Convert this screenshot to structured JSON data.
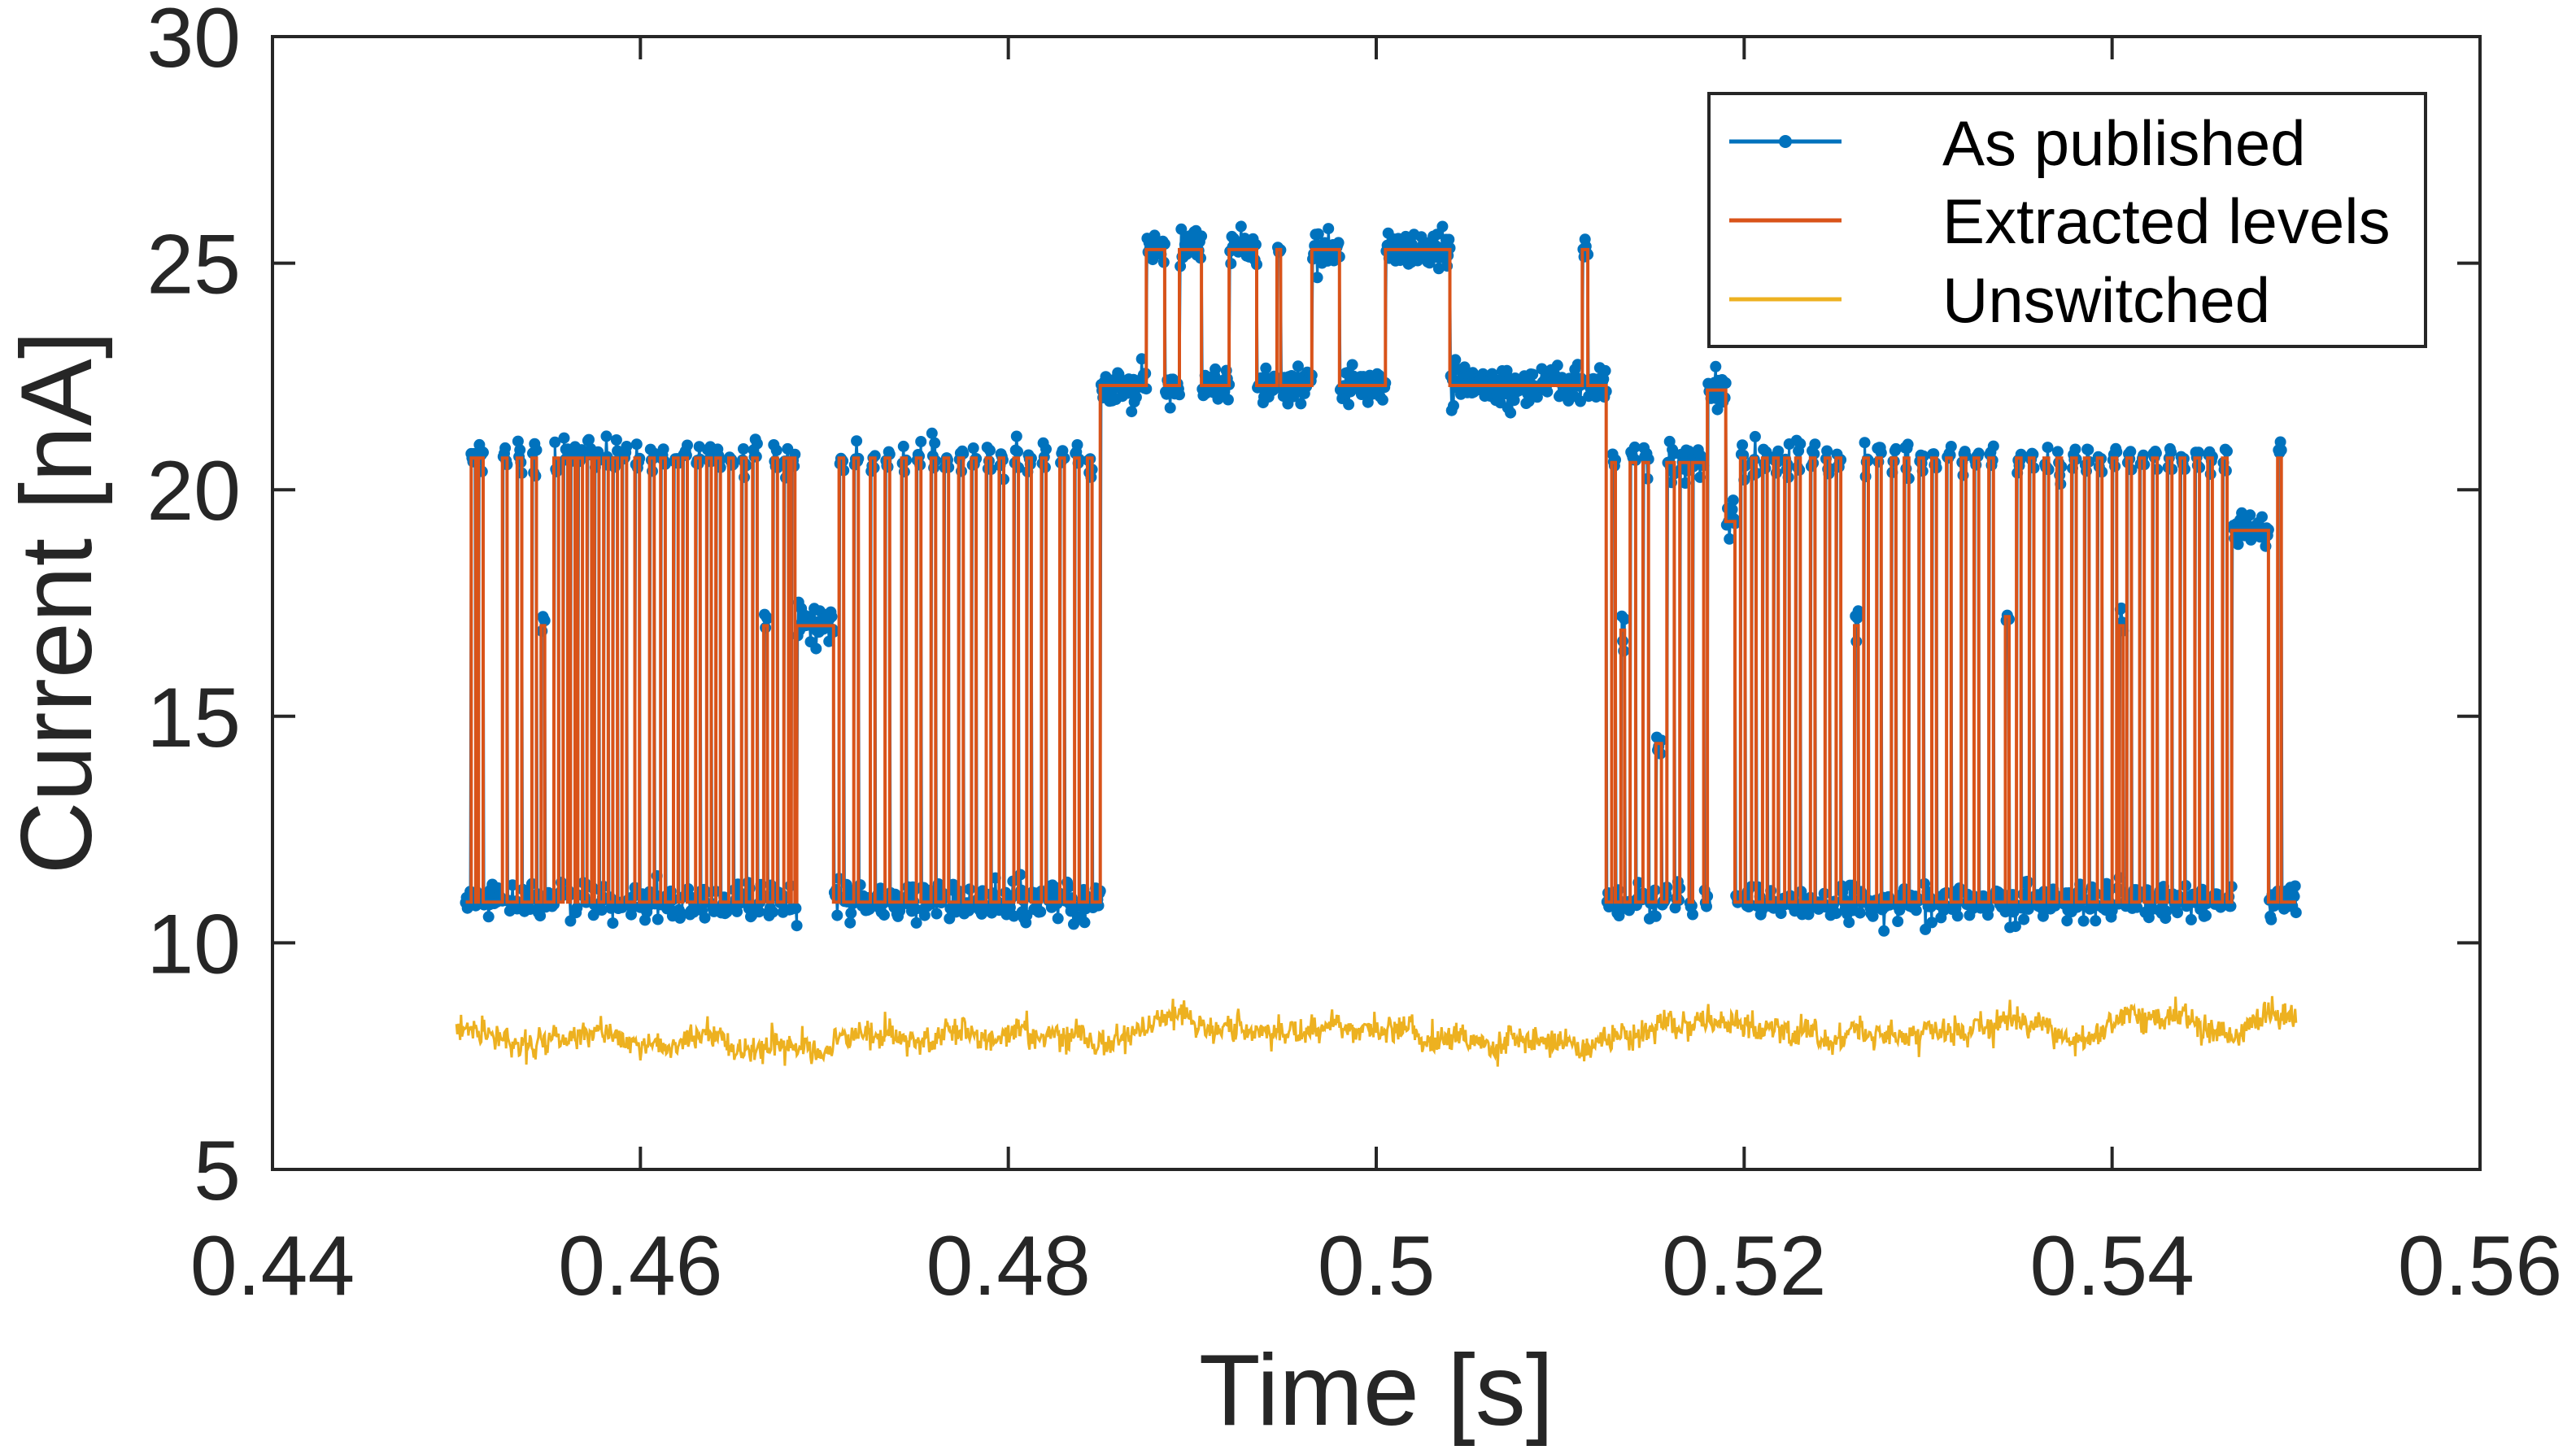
{
  "chart_data": {
    "type": "line",
    "title": "",
    "xlabel": "Time [s]",
    "ylabel": "Current [nA]",
    "xlim": [
      0.44,
      0.56
    ],
    "ylim": [
      5,
      30
    ],
    "xticks": [
      0.44,
      0.46,
      0.48,
      0.5,
      0.52,
      0.54,
      0.56
    ],
    "xtick_labels": [
      "0.44",
      "0.46",
      "0.48",
      "0.5",
      "0.52",
      "0.54",
      "0.56"
    ],
    "yticks": [
      5,
      10,
      15,
      20,
      25,
      30
    ],
    "ytick_labels": [
      "5",
      "10",
      "15",
      "20",
      "25",
      "30"
    ],
    "grid": false,
    "legend_position": "top-right",
    "legend": [
      "As published",
      "Extracted levels",
      "Unswitched"
    ],
    "colors": {
      "as_published": "#0072BD",
      "extracted": "#D95319",
      "unswitched": "#EDB120",
      "axis": "#262626"
    },
    "series": [
      {
        "name": "As published",
        "style": "line-with-dots",
        "noise_std": 0.2,
        "sample_step": 5e-05
      },
      {
        "name": "Extracted levels",
        "style": "step",
        "blocks": [
          {
            "t0": 0.4505,
            "t1": 0.4685,
            "base": 10.9,
            "events": [
              [
                0.4508,
                0.00025,
                20.7
              ],
              [
                0.4512,
                0.00025,
                20.7
              ],
              [
                0.4525,
                0.00025,
                20.7
              ],
              [
                0.4533,
                0.00025,
                20.7
              ],
              [
                0.4541,
                0.00025,
                20.7
              ],
              [
                0.4546,
                0.0002,
                17.0
              ],
              [
                0.4553,
                0.00025,
                20.7
              ],
              [
                0.4558,
                0.00025,
                20.7
              ],
              [
                0.4562,
                0.00025,
                20.7
              ],
              [
                0.4566,
                0.00025,
                20.7
              ],
              [
                0.4571,
                0.00025,
                20.7
              ],
              [
                0.4575,
                0.00025,
                20.7
              ],
              [
                0.458,
                0.00025,
                20.7
              ],
              [
                0.4585,
                0.00025,
                20.7
              ],
              [
                0.459,
                0.00025,
                20.7
              ],
              [
                0.4597,
                0.00025,
                20.7
              ],
              [
                0.4605,
                0.00025,
                20.7
              ],
              [
                0.4611,
                0.00025,
                20.7
              ],
              [
                0.4618,
                0.00025,
                20.7
              ],
              [
                0.4623,
                0.00025,
                20.7
              ],
              [
                0.463,
                0.00025,
                20.7
              ],
              [
                0.4636,
                0.00025,
                20.7
              ],
              [
                0.4641,
                0.00025,
                20.7
              ],
              [
                0.4648,
                0.00025,
                20.7
              ],
              [
                0.4655,
                0.00025,
                20.7
              ],
              [
                0.4661,
                0.00025,
                20.7
              ],
              [
                0.4667,
                0.0002,
                17.0
              ],
              [
                0.4672,
                0.00025,
                20.7
              ],
              [
                0.4678,
                0.00025,
                20.7
              ],
              [
                0.4682,
                0.0002,
                20.7
              ]
            ]
          },
          {
            "t0": 0.4685,
            "t1": 0.4705,
            "base": 17.0,
            "events": []
          },
          {
            "t0": 0.4705,
            "t1": 0.485,
            "base": 10.9,
            "events": [
              [
                0.4708,
                0.00025,
                20.7
              ],
              [
                0.4716,
                0.00025,
                20.7
              ],
              [
                0.4725,
                0.00025,
                20.7
              ],
              [
                0.4733,
                0.00025,
                20.7
              ],
              [
                0.4742,
                0.00025,
                20.7
              ],
              [
                0.475,
                0.00025,
                20.7
              ],
              [
                0.4758,
                0.00025,
                20.7
              ],
              [
                0.4765,
                0.00025,
                20.7
              ],
              [
                0.4773,
                0.00025,
                20.7
              ],
              [
                0.478,
                0.00025,
                20.7
              ],
              [
                0.4788,
                0.00025,
                20.7
              ],
              [
                0.4795,
                0.00025,
                20.7
              ],
              [
                0.4803,
                0.00025,
                20.7
              ],
              [
                0.481,
                0.00025,
                20.7
              ],
              [
                0.4818,
                0.00025,
                20.7
              ],
              [
                0.4828,
                0.00025,
                20.7
              ],
              [
                0.4836,
                0.00025,
                20.7
              ],
              [
                0.4843,
                0.00025,
                20.7
              ]
            ]
          },
          {
            "t0": 0.485,
            "t1": 0.5125,
            "base": 22.3,
            "events": [
              [
                0.4875,
                0.001,
                25.3
              ],
              [
                0.4893,
                0.0012,
                25.3
              ],
              [
                0.492,
                0.0015,
                25.3
              ],
              [
                0.4946,
                0.0002,
                25.3
              ],
              [
                0.4965,
                0.0015,
                25.3
              ],
              [
                0.5005,
                0.0035,
                25.3
              ],
              [
                0.5112,
                0.0003,
                25.3
              ]
            ]
          },
          {
            "t0": 0.5125,
            "t1": 0.518,
            "base": 10.9,
            "events": [
              [
                0.5128,
                0.0002,
                20.6
              ],
              [
                0.5133,
                0.0002,
                16.9
              ],
              [
                0.5138,
                0.0003,
                20.6
              ],
              [
                0.5145,
                0.0003,
                20.6
              ],
              [
                0.5152,
                0.0003,
                14.4
              ],
              [
                0.5158,
                0.0004,
                20.6
              ],
              [
                0.5165,
                0.0005,
                20.6
              ],
              [
                0.5172,
                0.0006,
                20.6
              ]
            ]
          },
          {
            "t0": 0.518,
            "t1": 0.519,
            "base": 22.2,
            "events": []
          },
          {
            "t0": 0.519,
            "t1": 0.5195,
            "base": 19.3,
            "events": []
          },
          {
            "t0": 0.5195,
            "t1": 0.5465,
            "base": 10.9,
            "events": [
              [
                0.5198,
                0.00025,
                20.7
              ],
              [
                0.5204,
                0.00025,
                20.7
              ],
              [
                0.521,
                0.00025,
                20.7
              ],
              [
                0.5216,
                0.00025,
                20.7
              ],
              [
                0.5222,
                0.00025,
                20.7
              ],
              [
                0.5228,
                0.00025,
                20.7
              ],
              [
                0.5236,
                0.00025,
                20.7
              ],
              [
                0.5244,
                0.00025,
                20.7
              ],
              [
                0.525,
                0.00025,
                20.7
              ],
              [
                0.526,
                0.0002,
                17.0
              ],
              [
                0.5265,
                0.00025,
                20.7
              ],
              [
                0.5272,
                0.00025,
                20.7
              ],
              [
                0.528,
                0.00025,
                20.7
              ],
              [
                0.5287,
                0.00025,
                20.7
              ],
              [
                0.5295,
                0.00025,
                20.7
              ],
              [
                0.5302,
                0.00025,
                20.7
              ],
              [
                0.531,
                0.00025,
                20.7
              ],
              [
                0.5318,
                0.00025,
                20.7
              ],
              [
                0.5325,
                0.00025,
                20.7
              ],
              [
                0.5333,
                0.00025,
                20.7
              ],
              [
                0.5342,
                0.0002,
                17.2
              ],
              [
                0.5348,
                0.00025,
                20.7
              ],
              [
                0.5355,
                0.00025,
                20.7
              ],
              [
                0.5363,
                0.00025,
                20.7
              ],
              [
                0.537,
                0.00025,
                20.7
              ],
              [
                0.5378,
                0.00025,
                20.7
              ],
              [
                0.5385,
                0.00025,
                20.7
              ],
              [
                0.5392,
                0.00025,
                20.7
              ],
              [
                0.54,
                0.00025,
                20.7
              ],
              [
                0.5404,
                0.0002,
                17.0
              ],
              [
                0.5408,
                0.00025,
                20.7
              ],
              [
                0.5415,
                0.00025,
                20.7
              ],
              [
                0.5422,
                0.00025,
                20.7
              ],
              [
                0.543,
                0.00025,
                20.7
              ],
              [
                0.5437,
                0.00025,
                20.7
              ],
              [
                0.5445,
                0.00025,
                20.7
              ],
              [
                0.5452,
                0.00025,
                20.7
              ],
              [
                0.546,
                0.00025,
                20.7
              ]
            ]
          },
          {
            "t0": 0.5465,
            "t1": 0.5485,
            "base": 19.1,
            "events": []
          },
          {
            "t0": 0.5485,
            "t1": 0.55,
            "base": 10.9,
            "events": [
              [
                0.549,
                0.0002,
                20.7
              ]
            ]
          }
        ]
      },
      {
        "name": "Unswitched",
        "style": "line",
        "t0": 0.45,
        "t1": 0.55,
        "mean": 8.0,
        "noise_std": 0.25,
        "sample_step": 5e-05
      }
    ]
  }
}
